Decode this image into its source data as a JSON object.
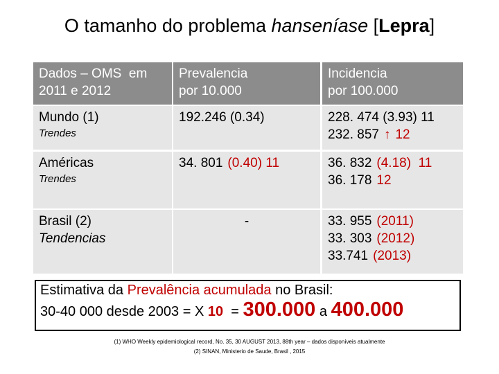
{
  "title": {
    "plain": "O tamanho do problema ",
    "italic": "hanseníase",
    "open": " [",
    "bold": "Lepra",
    "close": "]"
  },
  "table": {
    "header": [
      [
        "Dados – OMS  em",
        "2011 e 2012"
      ],
      [
        "Prevalencia",
        "por 10.000"
      ],
      [
        "Incidencia",
        "por 100.000"
      ]
    ],
    "rows": [
      [
        [
          {
            "italic": false,
            "segments": [
              {
                "text": "Mundo (1)"
              }
            ]
          },
          {
            "italic": true,
            "segments": [
              {
                "text": "Trendes"
              }
            ]
          }
        ],
        [
          {
            "italic": false,
            "segments": [
              {
                "text": "192.246 (0.34)"
              }
            ]
          }
        ],
        [
          {
            "italic": false,
            "segments": [
              {
                "text": "228. 474 (3.93) 11"
              }
            ]
          },
          {
            "italic": false,
            "segments": [
              {
                "text": "232. 857"
              },
              {
                "text": "↑",
                "color": "#c00000"
              },
              {
                "text": "12",
                "color": "#c00000"
              }
            ]
          }
        ]
      ],
      [
        [
          {
            "italic": false,
            "segments": [
              {
                "text": "Américas"
              }
            ]
          },
          {
            "italic": true,
            "segments": [
              {
                "text": "Trendes"
              }
            ]
          }
        ],
        [
          {
            "italic": false,
            "segments": [
              {
                "text": "34. 801"
              },
              {
                "text": "(0.40) 11",
                "color": "#c00000"
              }
            ]
          }
        ],
        [
          {
            "italic": false,
            "segments": [
              {
                "text": "36. 832"
              },
              {
                "text": "(4.18)  11",
                "color": "#c00000"
              }
            ]
          },
          {
            "italic": false,
            "segments": [
              {
                "text": "36. 178"
              },
              {
                "text": "12",
                "color": "#c00000"
              }
            ]
          }
        ]
      ],
      [
        [
          {
            "italic": false,
            "segments": [
              {
                "text": "Brasil (2)"
              }
            ]
          },
          {
            "italic": true,
            "segments": [
              {
                "text": "Tendencias"
              }
            ]
          }
        ],
        [
          {
            "italic": false,
            "segments": [
              {
                "text": "-"
              }
            ]
          }
        ],
        [
          {
            "italic": false,
            "segments": [
              {
                "text": "33. 955"
              },
              {
                "text": "(2011)",
                "color": "#c00000"
              }
            ]
          },
          {
            "italic": false,
            "segments": [
              {
                "text": "33. 303"
              },
              {
                "text": "(2012)",
                "color": "#c00000"
              }
            ]
          },
          {
            "italic": false,
            "segments": [
              {
                "text": "33.741"
              },
              {
                "text": "(2013)",
                "color": "#c00000"
              }
            ]
          }
        ]
      ]
    ]
  },
  "estimate": {
    "line1": [
      {
        "text": "Estimativa da "
      },
      {
        "text": "Prevalência acumulada",
        "color": "#c00000"
      },
      {
        "text": " no Brasil:"
      }
    ],
    "line2": [
      {
        "text": "30-40 000 desde 2003 = X "
      },
      {
        "text": "10",
        "color": "#c00000",
        "bold": true
      },
      {
        "text": "  = "
      },
      {
        "text": "300.000",
        "color": "#c00000",
        "big": true
      },
      {
        "text": " a "
      },
      {
        "text": "400.000",
        "color": "#c00000",
        "big": true
      }
    ]
  },
  "footnotes": [
    "(1)  WHO Weekly epidemiological record, No. 35, 30 AUGUST 2013, 88th year – dados disponíveis atualmente",
    "(2)  SINAN, Ministerio de Saude, Brasil , 2015"
  ]
}
